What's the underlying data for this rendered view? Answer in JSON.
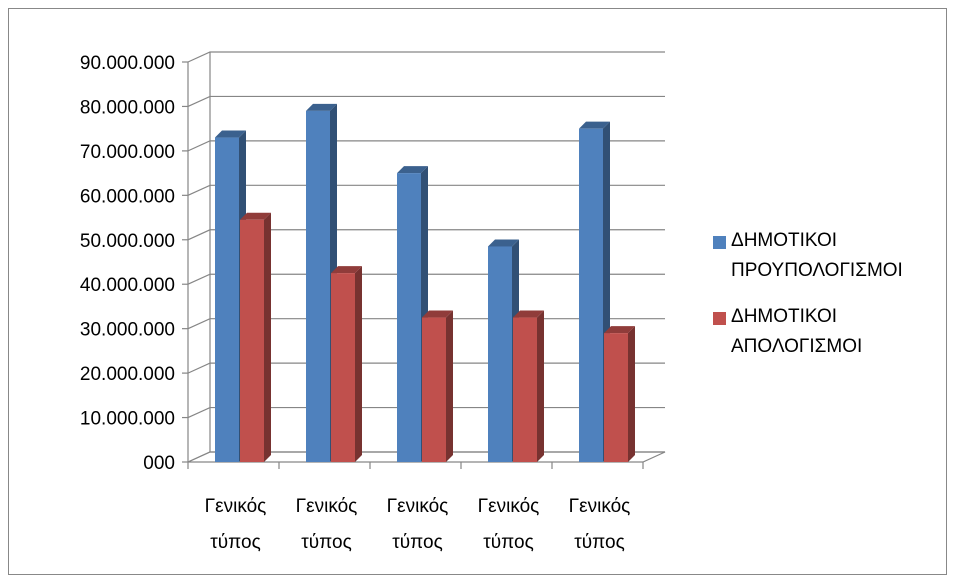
{
  "chart_data": {
    "type": "bar",
    "categories": [
      "Γενικός τύπος",
      "Γενικός τύπος",
      "Γενικός τύπος",
      "Γενικός τύπος",
      "Γενικός τύπος"
    ],
    "series": [
      {
        "name": "ΔΗΜΟΤΙΚΟΙ ΠΡΟΥΠΟΛΟΓΙΣΜΟΙ",
        "values": [
          73000000,
          79000000,
          65000000,
          48500000,
          75000000
        ],
        "color": "#4F81BD"
      },
      {
        "name": "ΔΗΜΟΤΙΚΟΙ ΑΠΟΛΟΓΙΣΜΟΙ",
        "values": [
          54500000,
          42500000,
          32500000,
          32500000,
          29000000
        ],
        "color": "#C0504D"
      }
    ],
    "ytick_labels": [
      "000",
      "10.000.000",
      "20.000.000",
      "30.000.000",
      "40.000.000",
      "50.000.000",
      "60.000.000",
      "70.000.000",
      "80.000.000",
      "90.000.000"
    ],
    "ylim": [
      0,
      90000000
    ],
    "xlabel": "",
    "ylabel": "",
    "grid": true,
    "legend_position": "right",
    "style": "3d-clustered-column"
  }
}
